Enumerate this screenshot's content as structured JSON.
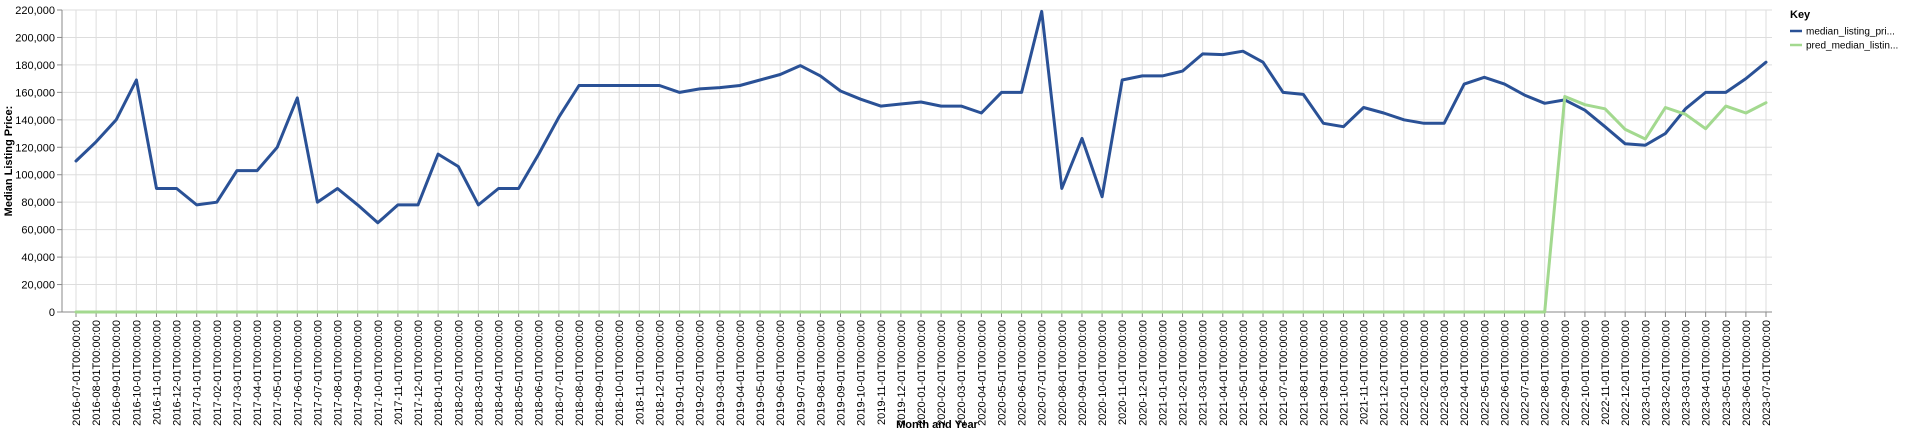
{
  "chart_data": {
    "type": "line",
    "title": "",
    "xlabel": "Month and Year",
    "ylabel": "Median Listing Price:",
    "ylim": [
      0,
      220000
    ],
    "y_ticks": [
      "0",
      "20,000",
      "40,000",
      "60,000",
      "80,000",
      "100,000",
      "120,000",
      "140,000",
      "160,000",
      "180,000",
      "200,000",
      "220,000"
    ],
    "y_tick_values": [
      0,
      20000,
      40000,
      60000,
      80000,
      100000,
      120000,
      140000,
      160000,
      180000,
      200000,
      220000
    ],
    "grid": true,
    "legend_placement": "top-right",
    "legend_title": "Key",
    "x": [
      "2016-07-01T00:00:00",
      "2016-08-01T00:00:00",
      "2016-09-01T00:00:00",
      "2016-10-01T00:00:00",
      "2016-11-01T00:00:00",
      "2016-12-01T00:00:00",
      "2017-01-01T00:00:00",
      "2017-02-01T00:00:00",
      "2017-03-01T00:00:00",
      "2017-04-01T00:00:00",
      "2017-05-01T00:00:00",
      "2017-06-01T00:00:00",
      "2017-07-01T00:00:00",
      "2017-08-01T00:00:00",
      "2017-09-01T00:00:00",
      "2017-10-01T00:00:00",
      "2017-11-01T00:00:00",
      "2017-12-01T00:00:00",
      "2018-01-01T00:00:00",
      "2018-02-01T00:00:00",
      "2018-03-01T00:00:00",
      "2018-04-01T00:00:00",
      "2018-05-01T00:00:00",
      "2018-06-01T00:00:00",
      "2018-07-01T00:00:00",
      "2018-08-01T00:00:00",
      "2018-09-01T00:00:00",
      "2018-10-01T00:00:00",
      "2018-11-01T00:00:00",
      "2018-12-01T00:00:00",
      "2019-01-01T00:00:00",
      "2019-02-01T00:00:00",
      "2019-03-01T00:00:00",
      "2019-04-01T00:00:00",
      "2019-05-01T00:00:00",
      "2019-06-01T00:00:00",
      "2019-07-01T00:00:00",
      "2019-08-01T00:00:00",
      "2019-09-01T00:00:00",
      "2019-10-01T00:00:00",
      "2019-11-01T00:00:00",
      "2019-12-01T00:00:00",
      "2020-01-01T00:00:00",
      "2020-02-01T00:00:00",
      "2020-03-01T00:00:00",
      "2020-04-01T00:00:00",
      "2020-05-01T00:00:00",
      "2020-06-01T00:00:00",
      "2020-07-01T00:00:00",
      "2020-08-01T00:00:00",
      "2020-09-01T00:00:00",
      "2020-10-01T00:00:00",
      "2020-11-01T00:00:00",
      "2020-12-01T00:00:00",
      "2021-01-01T00:00:00",
      "2021-02-01T00:00:00",
      "2021-03-01T00:00:00",
      "2021-04-01T00:00:00",
      "2021-05-01T00:00:00",
      "2021-06-01T00:00:00",
      "2021-07-01T00:00:00",
      "2021-08-01T00:00:00",
      "2021-09-01T00:00:00",
      "2021-10-01T00:00:00",
      "2021-11-01T00:00:00",
      "2021-12-01T00:00:00",
      "2022-01-01T00:00:00",
      "2022-02-01T00:00:00",
      "2022-03-01T00:00:00",
      "2022-04-01T00:00:00",
      "2022-05-01T00:00:00",
      "2022-06-01T00:00:00",
      "2022-07-01T00:00:00",
      "2022-08-01T00:00:00",
      "2022-09-01T00:00:00",
      "2022-10-01T00:00:00",
      "2022-11-01T00:00:00",
      "2022-12-01T00:00:00",
      "2023-01-01T00:00:00",
      "2023-02-01T00:00:00",
      "2023-03-01T00:00:00",
      "2023-04-01T00:00:00",
      "2023-05-01T00:00:00",
      "2023-06-01T00:00:00",
      "2023-07-01T00:00:00"
    ],
    "series": [
      {
        "name": "median_listing_pri...",
        "color": "#2a5196",
        "values": [
          110000,
          124000,
          140000,
          169000,
          90000,
          90000,
          78000,
          80000,
          103000,
          103000,
          120000,
          156000,
          80000,
          90000,
          78000,
          65000,
          78000,
          78000,
          115000,
          106000,
          78000,
          90000,
          90000,
          115000,
          142000,
          165000,
          165000,
          165000,
          165000,
          165000,
          160000,
          162500,
          163500,
          165000,
          169000,
          173000,
          179500,
          172000,
          161000,
          155000,
          150000,
          151500,
          153000,
          150000,
          150000,
          145000,
          160000,
          160000,
          219000,
          90000,
          126500,
          84000,
          169000,
          172000,
          172000,
          175500,
          188000,
          187500,
          190000,
          182000,
          160000,
          158500,
          137500,
          135000,
          149000,
          145000,
          140000,
          137500,
          137500,
          166000,
          171000,
          166000,
          158000,
          152000,
          154500,
          147000,
          135000,
          122500,
          121500,
          130000,
          148000,
          160000,
          160000,
          170000,
          182000
        ]
      },
      {
        "name": "pred_median_listin...",
        "color": "#a3d98f",
        "values": [
          0,
          0,
          0,
          0,
          0,
          0,
          0,
          0,
          0,
          0,
          0,
          0,
          0,
          0,
          0,
          0,
          0,
          0,
          0,
          0,
          0,
          0,
          0,
          0,
          0,
          0,
          0,
          0,
          0,
          0,
          0,
          0,
          0,
          0,
          0,
          0,
          0,
          0,
          0,
          0,
          0,
          0,
          0,
          0,
          0,
          0,
          0,
          0,
          0,
          0,
          0,
          0,
          0,
          0,
          0,
          0,
          0,
          0,
          0,
          0,
          0,
          0,
          0,
          0,
          0,
          0,
          0,
          0,
          0,
          0,
          0,
          0,
          0,
          0,
          157000,
          151000,
          148000,
          133000,
          126000,
          149000,
          144000,
          133500,
          150000,
          145000,
          152500
        ]
      }
    ]
  }
}
